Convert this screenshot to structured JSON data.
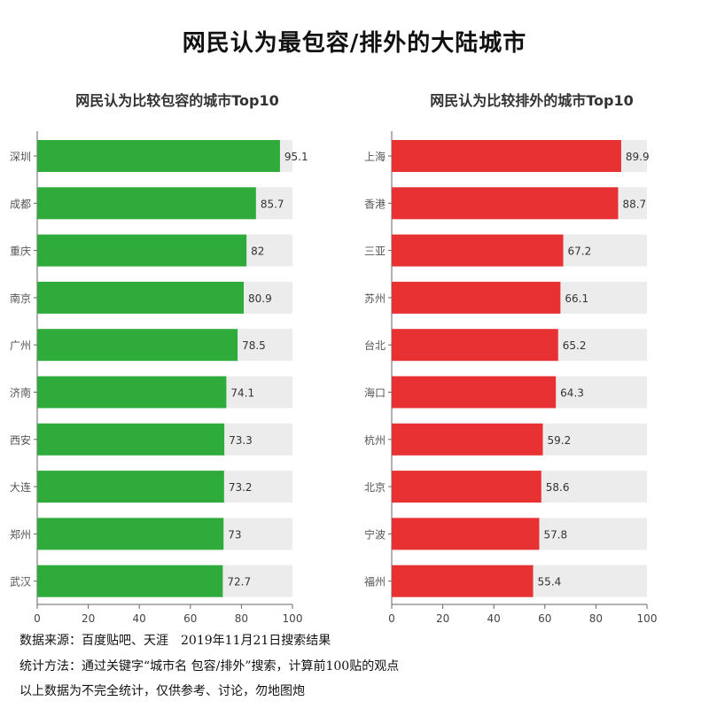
{
  "title": "网民认为最包容/排外的大陆城市",
  "colors": {
    "inclusive": "#2eab3a",
    "exclusive": "#e83132",
    "track": "#ececec",
    "axis": "#666666"
  },
  "chart_data": [
    {
      "type": "bar",
      "orientation": "horizontal",
      "title": "网民认为比较包容的城市Top10",
      "categories": [
        "深圳",
        "成都",
        "重庆",
        "南京",
        "广州",
        "济南",
        "西安",
        "大连",
        "郑州",
        "武汉"
      ],
      "values": [
        95.1,
        85.7,
        82,
        80.9,
        78.5,
        74.1,
        73.3,
        73.2,
        73,
        72.7
      ],
      "value_labels": [
        "95.1",
        "85.7",
        "82",
        "80.9",
        "78.5",
        "74.1",
        "73.3",
        "73.2",
        "73",
        "72.7"
      ],
      "xlim": [
        0,
        100
      ],
      "xticks": [
        "0",
        "20",
        "40",
        "60",
        "80",
        "100"
      ],
      "color": "#2eab3a"
    },
    {
      "type": "bar",
      "orientation": "horizontal",
      "title": "网民认为比较排外的城市Top10",
      "categories": [
        "上海",
        "香港",
        "三亚",
        "苏州",
        "台北",
        "海口",
        "杭州",
        "北京",
        "宁波",
        "福州"
      ],
      "values": [
        89.9,
        88.7,
        67.2,
        66.1,
        65.2,
        64.3,
        59.2,
        58.6,
        57.8,
        55.4
      ],
      "value_labels": [
        "89.9",
        "88.7",
        "67.2",
        "66.1",
        "65.2",
        "64.3",
        "59.2",
        "58.6",
        "57.8",
        "55.4"
      ],
      "xlim": [
        0,
        100
      ],
      "xticks": [
        "0",
        "20",
        "40",
        "60",
        "80",
        "100"
      ],
      "color": "#e83132"
    }
  ],
  "footer": {
    "line1": "数据来源：百度贴吧、天涯　2019年11月21日搜索结果",
    "line2": "统计方法：通过关键字“城市名 包容/排外”搜索，计算前100贴的观点",
    "line3": "以上数据为不完全统计，仅供参考、讨论，勿地图炮"
  }
}
